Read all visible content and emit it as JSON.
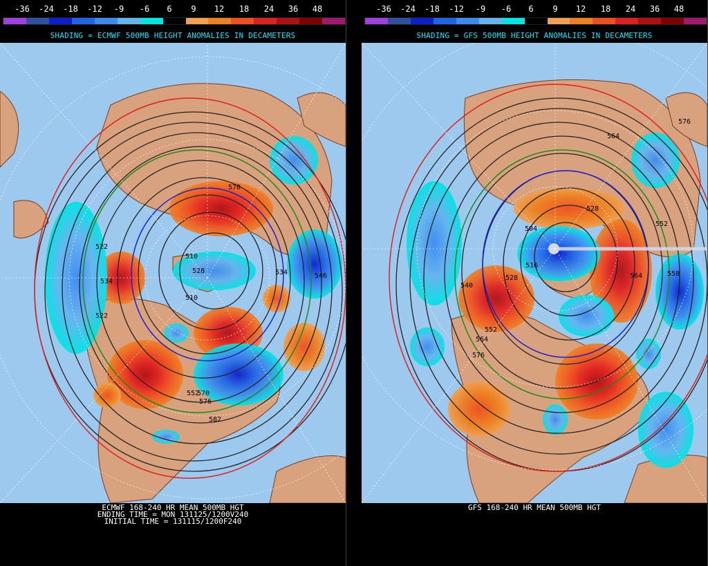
{
  "colorbar": {
    "labels": [
      "-36",
      "-24",
      "-18",
      "-12",
      "-9",
      "-6",
      "6",
      "9",
      "12",
      "18",
      "24",
      "36",
      "48"
    ],
    "colors": [
      "#a040e0",
      "#3050a0",
      "#0a20d0",
      "#1e64e6",
      "#3c8cf0",
      "#64b4f0",
      "#00e4e4",
      "#000000",
      "#f0a050",
      "#f08020",
      "#f05020",
      "#e02020",
      "#b01010",
      "#800000",
      "#a01870"
    ]
  },
  "panels": [
    {
      "model": "ECMWF",
      "subtitle": "SHADING = ECMWF 500MB HEIGHT ANOMALIES IN DECAMETERS",
      "bottom_lines": [
        "ECMWF 168-240 HR MEAN 500MB HGT",
        "ENDING TIME = MON 131125/1200V240",
        "INITIAL TIME = 131115/1200F240"
      ],
      "contour_labels": [
        "570",
        "522",
        "534",
        "510",
        "528",
        "534",
        "546",
        "522",
        "552",
        "570",
        "576",
        "582"
      ]
    },
    {
      "model": "GFS",
      "subtitle": "SHADING = GFS 500MB HEIGHT ANOMALIES IN DECAMETERS",
      "bottom_lines": [
        "GFS 168-240 HR MEAN 500MB HGT"
      ],
      "contour_labels": [
        "576",
        "564",
        "528",
        "504",
        "516",
        "540",
        "528",
        "564",
        "552",
        "558",
        "576",
        "564",
        "552"
      ]
    }
  ],
  "icons": {
    "map": "polar-stereographic-map-icon"
  }
}
